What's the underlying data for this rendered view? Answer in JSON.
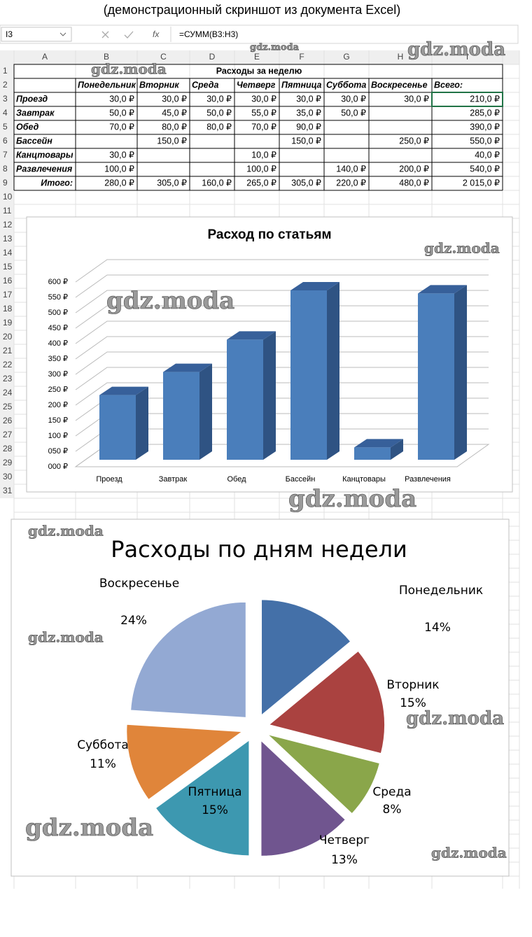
{
  "caption": "(демонстрационный скриншот из документа Excel)",
  "formula_bar": {
    "name_box": "I3",
    "function_icon": "fx",
    "formula": "=СУММ(B3:H3)"
  },
  "watermark": "gdz.moda",
  "sheet": {
    "columns": [
      "A",
      "B",
      "C",
      "D",
      "E",
      "F",
      "G",
      "H",
      "I"
    ],
    "row_numbers": [
      1,
      2,
      3,
      4,
      5,
      6,
      7,
      8,
      9,
      10,
      11,
      12,
      13,
      14,
      15,
      16,
      17,
      18,
      19,
      20,
      21,
      22,
      23,
      24,
      25,
      26,
      27,
      28,
      29,
      30,
      31
    ],
    "title": "Расходы за неделю",
    "header": [
      "Понедельник",
      "Вторник",
      "Среда",
      "Четверг",
      "Пятница",
      "Суббота",
      "Воскресенье",
      "Всего:"
    ],
    "rows": [
      {
        "label": "Проезд",
        "cells": [
          "30,0 ₽",
          "30,0 ₽",
          "30,0 ₽",
          "30,0 ₽",
          "30,0 ₽",
          "30,0 ₽",
          "30,0 ₽",
          "210,0 ₽"
        ]
      },
      {
        "label": "Завтрак",
        "cells": [
          "50,0 ₽",
          "45,0 ₽",
          "50,0 ₽",
          "55,0 ₽",
          "35,0 ₽",
          "50,0 ₽",
          null,
          "285,0 ₽"
        ]
      },
      {
        "label": "Обед",
        "cells": [
          "70,0 ₽",
          "80,0 ₽",
          "80,0 ₽",
          "70,0 ₽",
          "90,0 ₽",
          null,
          null,
          "390,0 ₽"
        ]
      },
      {
        "label": "Бассейн",
        "cells": [
          null,
          "150,0 ₽",
          null,
          null,
          "150,0 ₽",
          null,
          "250,0 ₽",
          "550,0 ₽"
        ]
      },
      {
        "label": "Канцтовары",
        "cells": [
          "30,0 ₽",
          null,
          null,
          "10,0 ₽",
          null,
          null,
          null,
          "40,0 ₽"
        ]
      },
      {
        "label": "Развлечения",
        "cells": [
          "100,0 ₽",
          null,
          null,
          "100,0 ₽",
          null,
          "140,0 ₽",
          "200,0 ₽",
          "540,0 ₽"
        ]
      },
      {
        "label": "Итого:",
        "cells": [
          "280,0 ₽",
          "305,0 ₽",
          "160,0 ₽",
          "265,0 ₽",
          "305,0 ₽",
          "220,0 ₽",
          "480,0 ₽",
          "2 015,0 ₽"
        ]
      }
    ]
  },
  "chart_data": [
    {
      "type": "bar",
      "title": "Расход по статьям",
      "categories": [
        "Проезд",
        "Завтрак",
        "Обед",
        "Бассейн",
        "Канцтовары",
        "Развлечения"
      ],
      "values": [
        210,
        285,
        390,
        550,
        40,
        540
      ],
      "color": "#4a7ebb",
      "ylim": [
        0,
        600
      ],
      "yticks": [
        {
          "value": 0,
          "label": "000 ₽"
        },
        {
          "value": 50,
          "label": "050 ₽"
        },
        {
          "value": 100,
          "label": "100 ₽"
        },
        {
          "value": 150,
          "label": "150 ₽"
        },
        {
          "value": 200,
          "label": "200 ₽"
        },
        {
          "value": 250,
          "label": "250 ₽"
        },
        {
          "value": 300,
          "label": "300 ₽"
        },
        {
          "value": 350,
          "label": "350 ₽"
        },
        {
          "value": 400,
          "label": "400 ₽"
        },
        {
          "value": 450,
          "label": "450 ₽"
        },
        {
          "value": 500,
          "label": "500 ₽"
        },
        {
          "value": 550,
          "label": "550 ₽"
        },
        {
          "value": 600,
          "label": "600 ₽"
        }
      ],
      "grid": true
    },
    {
      "type": "pie",
      "title": "Расходы по дням недели",
      "categories": [
        "Понедельник",
        "Вторник",
        "Среда",
        "Четверг",
        "Пятница",
        "Суббота",
        "Воскресенье"
      ],
      "values": [
        14,
        15,
        8,
        13,
        15,
        11,
        24
      ],
      "value_labels": [
        "14%",
        "15%",
        "8%",
        "13%",
        "15%",
        "11%",
        "24%"
      ],
      "colors": [
        "#4470a8",
        "#aa4240",
        "#8aa64a",
        "#70558f",
        "#3d98b0",
        "#e0853a",
        "#93a9d3"
      ]
    }
  ]
}
